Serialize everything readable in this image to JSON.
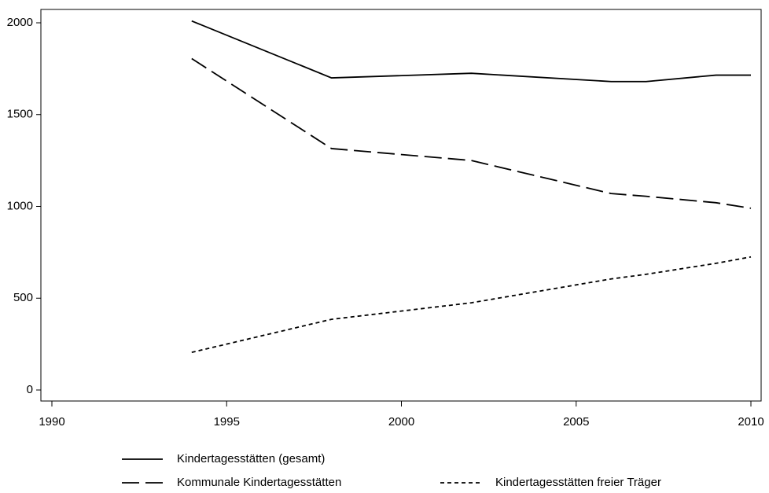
{
  "chart_data": {
    "type": "line",
    "x": [
      1994,
      1998,
      2002,
      2006,
      2007,
      2009,
      2010
    ],
    "series": [
      {
        "name": "Kindertagesstätten (gesamt)",
        "color": "#000000",
        "dash": "solid",
        "values": [
          2010,
          1700,
          1725,
          1680,
          1680,
          1715,
          1715
        ]
      },
      {
        "name": "Kommunale Kindertagesstätten",
        "color": "#000000",
        "dash": "long",
        "values": [
          1805,
          1315,
          1250,
          1070,
          1055,
          1020,
          990
        ]
      },
      {
        "name": "Kindertagesstätten freier Träger",
        "color": "#000000",
        "dash": "short",
        "values": [
          205,
          385,
          475,
          605,
          630,
          690,
          725
        ]
      }
    ],
    "xlim": [
      1990,
      2010
    ],
    "xticks": [
      1990,
      1995,
      2000,
      2005,
      2010
    ],
    "ylim": [
      0,
      2000
    ],
    "yticks": [
      0,
      500,
      1000,
      1500,
      2000
    ],
    "grid": false
  }
}
